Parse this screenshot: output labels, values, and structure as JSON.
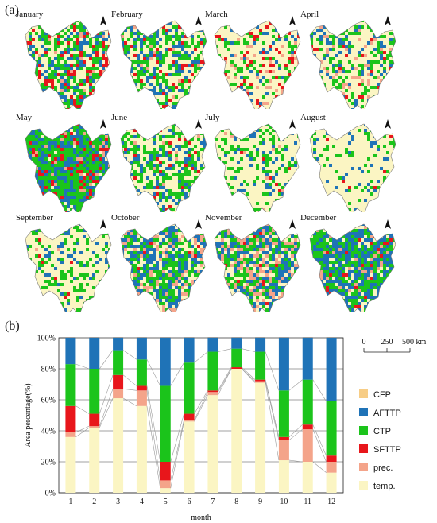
{
  "panel_a_label": "(a)",
  "panel_b_label": "(b)",
  "colors": {
    "CFP": "#f7cd86",
    "AFTTP": "#1f73b7",
    "CTP": "#1bc41b",
    "SFTTP": "#e8161b",
    "prec.": "#f4a48a",
    "temp.": "#fbf5c3"
  },
  "maps": [
    {
      "month": "January",
      "mix": {
        "temp.": 0.36,
        "prec.": 0.03,
        "SFTTP": 0.17,
        "CTP": 0.27,
        "AFTTP": 0.17
      }
    },
    {
      "month": "February",
      "mix": {
        "temp.": 0.42,
        "prec.": 0.01,
        "SFTTP": 0.08,
        "CTP": 0.29,
        "AFTTP": 0.2
      }
    },
    {
      "month": "March",
      "mix": {
        "temp.": 0.61,
        "prec.": 0.06,
        "SFTTP": 0.09,
        "CTP": 0.16,
        "AFTTP": 0.08
      }
    },
    {
      "month": "April",
      "mix": {
        "temp.": 0.56,
        "prec.": 0.1,
        "SFTTP": 0.03,
        "CTP": 0.17,
        "AFTTP": 0.14
      }
    },
    {
      "month": "May",
      "mix": {
        "temp.": 0.03,
        "prec.": 0.05,
        "SFTTP": 0.12,
        "CTP": 0.49,
        "AFTTP": 0.31
      }
    },
    {
      "month": "June",
      "mix": {
        "temp.": 0.46,
        "prec.": 0.01,
        "SFTTP": 0.04,
        "CTP": 0.33,
        "AFTTP": 0.16
      }
    },
    {
      "month": "July",
      "mix": {
        "temp.": 0.63,
        "prec.": 0.02,
        "SFTTP": 0.01,
        "CTP": 0.25,
        "AFTTP": 0.09
      }
    },
    {
      "month": "August",
      "mix": {
        "temp.": 0.8,
        "prec.": 0.0,
        "SFTTP": 0.01,
        "CTP": 0.12,
        "AFTTP": 0.07
      }
    },
    {
      "month": "September",
      "mix": {
        "temp.": 0.71,
        "prec.": 0.01,
        "SFTTP": 0.01,
        "CTP": 0.18,
        "AFTTP": 0.09
      }
    },
    {
      "month": "October",
      "mix": {
        "temp.": 0.21,
        "prec.": 0.13,
        "SFTTP": 0.02,
        "CTP": 0.3,
        "AFTTP": 0.34
      }
    },
    {
      "month": "November",
      "mix": {
        "temp.": 0.2,
        "prec.": 0.21,
        "SFTTP": 0.03,
        "CTP": 0.29,
        "AFTTP": 0.27
      }
    },
    {
      "month": "December",
      "mix": {
        "temp.": 0.13,
        "prec.": 0.07,
        "SFTTP": 0.04,
        "CTP": 0.35,
        "AFTTP": 0.41
      }
    }
  ],
  "scalebar": {
    "tick_0": "0",
    "tick_1": "250",
    "tick_2": "500 km"
  },
  "chart_data": {
    "type": "bar",
    "stacked": true,
    "categories": [
      "1",
      "2",
      "3",
      "4",
      "5",
      "6",
      "7",
      "8",
      "9",
      "10",
      "11",
      "12"
    ],
    "xlabel": "month",
    "ylabel": "Area percentage(%)",
    "ylim": [
      0,
      100
    ],
    "yticks": [
      "0%",
      "20%",
      "40%",
      "60%",
      "80%",
      "100%"
    ],
    "grid": "horizontal",
    "legend_order": [
      "CFP",
      "AFTTP",
      "CTP",
      "SFTTP",
      "prec.",
      "temp."
    ],
    "series": [
      {
        "name": "temp.",
        "values": [
          36,
          42,
          61,
          56,
          3,
          46,
          63,
          80,
          71,
          21,
          20,
          13
        ]
      },
      {
        "name": "prec.",
        "values": [
          3,
          1,
          6,
          10,
          5,
          1,
          2,
          0,
          1,
          13,
          21,
          7
        ]
      },
      {
        "name": "SFTTP",
        "values": [
          17,
          8,
          9,
          3,
          12,
          4,
          1,
          1,
          1,
          2,
          3,
          4
        ]
      },
      {
        "name": "CTP",
        "values": [
          27,
          29,
          16,
          17,
          49,
          33,
          25,
          12,
          18,
          30,
          29,
          35
        ]
      },
      {
        "name": "AFTTP",
        "values": [
          17,
          20,
          8,
          14,
          31,
          16,
          9,
          7,
          9,
          34,
          27,
          41
        ]
      },
      {
        "name": "CFP",
        "values": [
          0,
          0,
          0,
          0,
          0,
          0,
          0,
          0,
          0,
          0,
          0,
          0
        ]
      }
    ]
  }
}
